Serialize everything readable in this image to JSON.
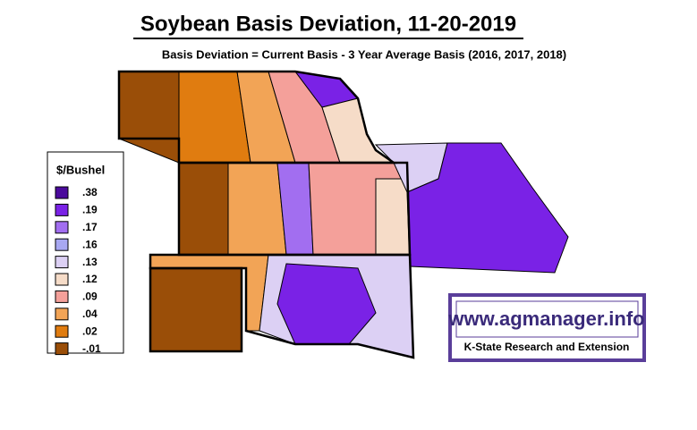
{
  "header": {
    "title": "Soybean Basis Deviation, 11-20-2019",
    "subtitle": "Basis Deviation = Current Basis - 3 Year Average Basis (2016, 2017, 2018)"
  },
  "legend": {
    "title": "$/Bushel",
    "items": [
      {
        "label": ".38",
        "color": "#4b0a9c"
      },
      {
        "label": ".19",
        "color": "#7a22e6"
      },
      {
        "label": ".17",
        "color": "#a26ef0"
      },
      {
        "label": ".16",
        "color": "#a8a8f2"
      },
      {
        "label": ".13",
        "color": "#dcd0f4"
      },
      {
        "label": ".12",
        "color": "#f6dcc8"
      },
      {
        "label": ".09",
        "color": "#f4a09a"
      },
      {
        "label": ".04",
        "color": "#f2a456"
      },
      {
        "label": ".02",
        "color": "#e07c10"
      },
      {
        "label": "-.01",
        "color": "#9a4e08"
      }
    ]
  },
  "logo": {
    "url": "www.agmanager.info",
    "org": "K-State Research and Extension"
  }
}
